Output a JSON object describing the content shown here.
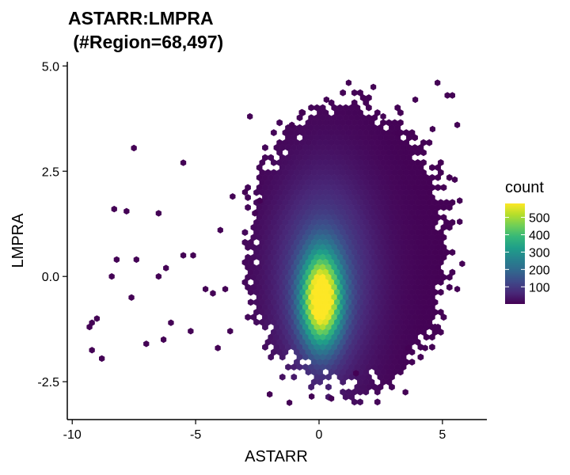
{
  "chart_data": {
    "type": "heatmap",
    "subtype": "hexbin",
    "title_lines": [
      "ASTARR:LMPRA",
      " (#Region=68,497)"
    ],
    "xlabel": "ASTARR",
    "ylabel": "LMPRA",
    "xlim": [
      -10.2,
      6.8
    ],
    "ylim": [
      -3.4,
      5.1
    ],
    "xticks": [
      -10,
      -5,
      0,
      5
    ],
    "xtick_labels": [
      "-10",
      "-5",
      "0",
      "5"
    ],
    "yticks": [
      -2.5,
      0.0,
      2.5,
      5.0
    ],
    "ytick_labels": [
      "-2.5",
      "0.0",
      "2.5",
      "5.0"
    ],
    "grid": false,
    "legend": {
      "title": "count",
      "position": "right",
      "ticks": [
        100,
        200,
        300,
        400,
        500
      ],
      "tick_labels": [
        "100",
        "200",
        "300",
        "400",
        "500"
      ],
      "range": [
        1,
        580
      ]
    },
    "colormap": [
      "#440154",
      "#482878",
      "#3e4989",
      "#31688e",
      "#26828e",
      "#1f9e89",
      "#35b779",
      "#6ece58",
      "#b5de2b",
      "#fde725"
    ],
    "density": {
      "core_center": [
        0.1,
        -0.55
      ],
      "core_peak_count": 580,
      "body_center": [
        0.3,
        0.3
      ],
      "body_extent_x": [
        -3.0,
        5.5
      ],
      "body_extent_y": [
        -3.0,
        4.6
      ]
    },
    "scattered_bins": [
      [
        -7.5,
        3.05
      ],
      [
        -8.3,
        1.6
      ],
      [
        -7.8,
        1.55
      ],
      [
        -6.5,
        1.5
      ],
      [
        -5.5,
        2.7
      ],
      [
        -8.2,
        0.4
      ],
      [
        -7.4,
        0.4
      ],
      [
        -8.4,
        0.0
      ],
      [
        -6.2,
        0.2
      ],
      [
        -6.5,
        0.0
      ],
      [
        -7.6,
        -0.5
      ],
      [
        -9.0,
        -1.0
      ],
      [
        -9.2,
        -1.1
      ],
      [
        -9.3,
        -1.2
      ],
      [
        -8.8,
        -1.95
      ],
      [
        -9.2,
        -1.75
      ],
      [
        -7.0,
        -1.6
      ],
      [
        -6.3,
        -1.5
      ],
      [
        -5.2,
        -1.3
      ],
      [
        -4.6,
        -0.3
      ],
      [
        -4.3,
        -0.4
      ],
      [
        -3.8,
        -0.3
      ],
      [
        -5.5,
        0.5
      ],
      [
        -5.1,
        0.5
      ],
      [
        -4.0,
        1.1
      ],
      [
        -2.8,
        3.8
      ],
      [
        -3.5,
        1.9
      ],
      [
        -3.0,
        2.0
      ],
      [
        -2.4,
        1.8
      ],
      [
        -2.6,
        1.5
      ],
      [
        -6.0,
        -1.1
      ],
      [
        -4.1,
        -1.7
      ],
      [
        -3.6,
        -1.3
      ],
      [
        -1.2,
        -3.0
      ],
      [
        1.5,
        -2.3
      ],
      [
        3.5,
        -2.75
      ],
      [
        4.8,
        4.6
      ],
      [
        5.2,
        4.3
      ],
      [
        5.4,
        4.3
      ],
      [
        1.2,
        4.6
      ],
      [
        2.2,
        4.5
      ],
      [
        3.9,
        4.2
      ],
      [
        4.6,
        3.5
      ],
      [
        5.6,
        3.6
      ],
      [
        5.5,
        2.3
      ],
      [
        5.7,
        1.3
      ],
      [
        5.8,
        0.3
      ],
      [
        5.6,
        -0.3
      ],
      [
        5.7,
        1.8
      ],
      [
        4.7,
        -1.2
      ],
      [
        4.3,
        -1.7
      ],
      [
        3.6,
        -1.7
      ],
      [
        -2.0,
        -2.8
      ],
      [
        0.5,
        -2.9
      ],
      [
        -0.3,
        -2.85
      ],
      [
        0.3,
        4.2
      ],
      [
        -0.7,
        3.9
      ],
      [
        -1.1,
        3.6
      ],
      [
        2.6,
        3.8
      ],
      [
        3.2,
        3.4
      ]
    ]
  }
}
